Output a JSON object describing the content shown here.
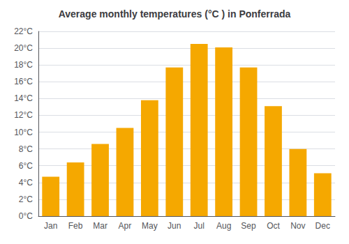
{
  "chart_data": {
    "type": "bar",
    "title": "Average monthly temperatures (°C ) in Ponferrada",
    "categories": [
      "Jan",
      "Feb",
      "Mar",
      "Apr",
      "May",
      "Jun",
      "Jul",
      "Aug",
      "Sep",
      "Oct",
      "Nov",
      "Dec"
    ],
    "values": [
      4.7,
      6.4,
      8.6,
      10.5,
      13.8,
      17.7,
      20.5,
      20.1,
      17.7,
      13.1,
      8.0,
      5.1
    ],
    "color": "#F5A800",
    "ylim": [
      0,
      22
    ],
    "yticks": [
      {
        "value": 0,
        "label": "0°C"
      },
      {
        "value": 2,
        "label": "2°C"
      },
      {
        "value": 4,
        "label": "4°C"
      },
      {
        "value": 6,
        "label": "6°C"
      },
      {
        "value": 8,
        "label": "8°C"
      },
      {
        "value": 10,
        "label": "10°C"
      },
      {
        "value": 12,
        "label": "12°C"
      },
      {
        "value": 14,
        "label": "14°C"
      },
      {
        "value": 16,
        "label": "16°C"
      },
      {
        "value": 18,
        "label": "18°C"
      },
      {
        "value": 20,
        "label": "20°C"
      },
      {
        "value": 22,
        "label": "22°C"
      }
    ],
    "grid": true
  }
}
